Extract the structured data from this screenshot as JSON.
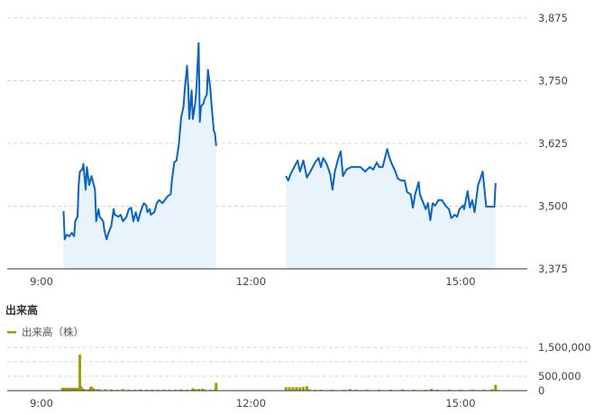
{
  "colors": {
    "price_line": "#0b63c4",
    "price_fill": "#e9f3fb",
    "volume": "#a39c00",
    "grid": "#d6d6d6",
    "axis": "#333333"
  },
  "chart_data": [
    {
      "type": "area",
      "yticks": [
        "3,375",
        "3,500",
        "3,625",
        "3,750",
        "3,875"
      ],
      "ytick_values": [
        3375,
        3500,
        3625,
        3750,
        3875
      ],
      "xticks": [
        "9:00",
        "12:00",
        "15:00"
      ],
      "ylim": [
        3375,
        3875
      ],
      "xlim": [
        "9:00",
        "15:49"
      ],
      "grid": true,
      "series": [
        {
          "session": "morning",
          "points": [
            [
              "9:19",
              3490
            ],
            [
              "9:20",
              3434
            ],
            [
              "9:21",
              3440
            ],
            [
              "9:22",
              3443
            ],
            [
              "9:24",
              3440
            ],
            [
              "9:26",
              3447
            ],
            [
              "9:28",
              3440
            ],
            [
              "9:29",
              3470
            ],
            [
              "9:31",
              3479
            ],
            [
              "9:32",
              3542
            ],
            [
              "9:33",
              3569
            ],
            [
              "9:35",
              3573
            ],
            [
              "9:36",
              3584
            ],
            [
              "9:38",
              3533
            ],
            [
              "9:39",
              3578
            ],
            [
              "9:41",
              3542
            ],
            [
              "9:43",
              3560
            ],
            [
              "9:44",
              3551
            ],
            [
              "9:46",
              3533
            ],
            [
              "9:47",
              3470
            ],
            [
              "9:49",
              3494
            ],
            [
              "9:50",
              3479
            ],
            [
              "9:53",
              3470
            ],
            [
              "9:54",
              3452
            ],
            [
              "9:56",
              3434
            ],
            [
              "9:57",
              3443
            ],
            [
              "10:00",
              3461
            ],
            [
              "10:02",
              3494
            ],
            [
              "10:03",
              3483
            ],
            [
              "10:06",
              3479
            ],
            [
              "10:08",
              3483
            ],
            [
              "10:10",
              3470
            ],
            [
              "10:13",
              3479
            ],
            [
              "10:15",
              3494
            ],
            [
              "10:17",
              3497
            ],
            [
              "10:19",
              3470
            ],
            [
              "10:21",
              3488
            ],
            [
              "10:23",
              3470
            ],
            [
              "10:25",
              3488
            ],
            [
              "10:27",
              3501
            ],
            [
              "10:28",
              3506
            ],
            [
              "10:30",
              3501
            ],
            [
              "10:31",
              3488
            ],
            [
              "10:33",
              3494
            ],
            [
              "10:34",
              3483
            ],
            [
              "10:37",
              3488
            ],
            [
              "10:39",
              3506
            ],
            [
              "10:41",
              3512
            ],
            [
              "10:44",
              3506
            ],
            [
              "10:46",
              3512
            ],
            [
              "10:48",
              3519
            ],
            [
              "10:51",
              3524
            ],
            [
              "10:52",
              3551
            ],
            [
              "10:54",
              3587
            ],
            [
              "10:56",
              3591
            ],
            [
              "10:58",
              3623
            ],
            [
              "11:00",
              3677
            ],
            [
              "11:02",
              3699
            ],
            [
              "11:03",
              3731
            ],
            [
              "11:05",
              3780
            ],
            [
              "11:06",
              3740
            ],
            [
              "11:07",
              3674
            ],
            [
              "11:09",
              3731
            ],
            [
              "11:10",
              3674
            ],
            [
              "11:12",
              3704
            ],
            [
              "11:13",
              3731
            ],
            [
              "11:15",
              3825
            ],
            [
              "11:16",
              3668
            ],
            [
              "11:17",
              3699
            ],
            [
              "11:19",
              3704
            ],
            [
              "11:20",
              3713
            ],
            [
              "11:22",
              3722
            ],
            [
              "11:23",
              3772
            ],
            [
              "11:25",
              3735
            ],
            [
              "11:26",
              3704
            ],
            [
              "11:28",
              3650
            ],
            [
              "11:29",
              3645
            ],
            [
              "11:30",
              3620
            ]
          ]
        },
        {
          "session": "afternoon",
          "points": [
            [
              "12:30",
              3560
            ],
            [
              "12:32",
              3551
            ],
            [
              "12:34",
              3564
            ],
            [
              "12:38",
              3582
            ],
            [
              "12:40",
              3591
            ],
            [
              "12:42",
              3569
            ],
            [
              "12:45",
              3591
            ],
            [
              "12:48",
              3557
            ],
            [
              "12:51",
              3569
            ],
            [
              "12:55",
              3587
            ],
            [
              "12:58",
              3596
            ],
            [
              "13:00",
              3578
            ],
            [
              "13:02",
              3596
            ],
            [
              "13:05",
              3584
            ],
            [
              "13:08",
              3564
            ],
            [
              "13:10",
              3533
            ],
            [
              "13:12",
              3569
            ],
            [
              "13:15",
              3596
            ],
            [
              "13:17",
              3609
            ],
            [
              "13:19",
              3560
            ],
            [
              "13:22",
              3573
            ],
            [
              "13:26",
              3578
            ],
            [
              "13:30",
              3578
            ],
            [
              "13:34",
              3578
            ],
            [
              "13:38",
              3569
            ],
            [
              "13:42",
              3578
            ],
            [
              "13:45",
              3573
            ],
            [
              "13:48",
              3587
            ],
            [
              "13:50",
              3578
            ],
            [
              "13:53",
              3578
            ],
            [
              "13:57",
              3614
            ],
            [
              "13:59",
              3596
            ],
            [
              "14:01",
              3584
            ],
            [
              "14:04",
              3569
            ],
            [
              "14:06",
              3555
            ],
            [
              "14:09",
              3551
            ],
            [
              "14:12",
              3551
            ],
            [
              "14:14",
              3528
            ],
            [
              "14:17",
              3524
            ],
            [
              "14:18",
              3512
            ],
            [
              "14:19",
              3497
            ],
            [
              "14:21",
              3524
            ],
            [
              "14:24",
              3548
            ],
            [
              "14:25",
              3524
            ],
            [
              "14:28",
              3506
            ],
            [
              "14:30",
              3494
            ],
            [
              "14:32",
              3506
            ],
            [
              "14:34",
              3472
            ],
            [
              "14:36",
              3506
            ],
            [
              "14:38",
              3501
            ],
            [
              "14:41",
              3512
            ],
            [
              "14:44",
              3512
            ],
            [
              "14:47",
              3501
            ],
            [
              "14:50",
              3494
            ],
            [
              "14:52",
              3476
            ],
            [
              "14:55",
              3483
            ],
            [
              "14:57",
              3479
            ],
            [
              "14:59",
              3494
            ],
            [
              "15:02",
              3501
            ],
            [
              "15:03",
              3494
            ],
            [
              "15:06",
              3530
            ],
            [
              "15:08",
              3497
            ],
            [
              "15:10",
              3512
            ],
            [
              "15:12",
              3488
            ],
            [
              "15:15",
              3542
            ],
            [
              "15:17",
              3555
            ],
            [
              "15:19",
              3569
            ],
            [
              "15:22",
              3499
            ],
            [
              "15:26",
              3499
            ],
            [
              "15:29",
              3499
            ],
            [
              "15:30",
              3546
            ]
          ]
        }
      ]
    },
    {
      "type": "bar",
      "title": "出来高",
      "legend": "出来高（株）",
      "yticks": [
        "0",
        "500,000",
        "1,500,000"
      ],
      "ytick_values": [
        0,
        500000,
        1500000
      ],
      "gridlines": [
        500000,
        1000000,
        1500000
      ],
      "xticks": [
        "9:00",
        "12:00",
        "15:00"
      ],
      "ylim": [
        0,
        1500000
      ],
      "grid": true,
      "points": [
        [
          "9:18",
          100000
        ],
        [
          "9:20",
          100000
        ],
        [
          "9:22",
          100000
        ],
        [
          "9:24",
          100000
        ],
        [
          "9:26",
          100000
        ],
        [
          "9:28",
          100000
        ],
        [
          "9:30",
          100000
        ],
        [
          "9:32",
          100000
        ],
        [
          "9:33",
          1250000
        ],
        [
          "9:34",
          150000
        ],
        [
          "9:35",
          80000
        ],
        [
          "9:37",
          60000
        ],
        [
          "9:40",
          40000
        ],
        [
          "9:42",
          120000
        ],
        [
          "9:43",
          140000
        ],
        [
          "9:45",
          80000
        ],
        [
          "9:48",
          50000
        ],
        [
          "9:50",
          40000
        ],
        [
          "9:55",
          50000
        ],
        [
          "10:00",
          40000
        ],
        [
          "10:05",
          30000
        ],
        [
          "10:10",
          50000
        ],
        [
          "10:15",
          30000
        ],
        [
          "10:20",
          30000
        ],
        [
          "10:25",
          40000
        ],
        [
          "10:30",
          30000
        ],
        [
          "10:35",
          30000
        ],
        [
          "10:40",
          30000
        ],
        [
          "10:45",
          30000
        ],
        [
          "10:50",
          30000
        ],
        [
          "10:55",
          30000
        ],
        [
          "11:00",
          40000
        ],
        [
          "11:05",
          30000
        ],
        [
          "11:10",
          80000
        ],
        [
          "11:12",
          50000
        ],
        [
          "11:15",
          60000
        ],
        [
          "11:18",
          70000
        ],
        [
          "11:20",
          40000
        ],
        [
          "11:25",
          30000
        ],
        [
          "11:29",
          50000
        ],
        [
          "11:30",
          270000
        ],
        [
          "12:30",
          120000
        ],
        [
          "12:33",
          120000
        ],
        [
          "12:36",
          120000
        ],
        [
          "12:39",
          120000
        ],
        [
          "12:42",
          120000
        ],
        [
          "12:45",
          130000
        ],
        [
          "12:48",
          150000
        ],
        [
          "12:50",
          40000
        ],
        [
          "12:55",
          30000
        ],
        [
          "13:00",
          30000
        ],
        [
          "13:10",
          30000
        ],
        [
          "13:20",
          30000
        ],
        [
          "13:25",
          50000
        ],
        [
          "13:30",
          30000
        ],
        [
          "13:40",
          30000
        ],
        [
          "13:50",
          30000
        ],
        [
          "14:00",
          30000
        ],
        [
          "14:10",
          40000
        ],
        [
          "14:20",
          30000
        ],
        [
          "14:30",
          30000
        ],
        [
          "14:35",
          60000
        ],
        [
          "14:40",
          30000
        ],
        [
          "14:50",
          30000
        ],
        [
          "15:00",
          30000
        ],
        [
          "15:10",
          30000
        ],
        [
          "15:20",
          30000
        ],
        [
          "15:27",
          50000
        ],
        [
          "15:30",
          200000
        ]
      ]
    }
  ]
}
